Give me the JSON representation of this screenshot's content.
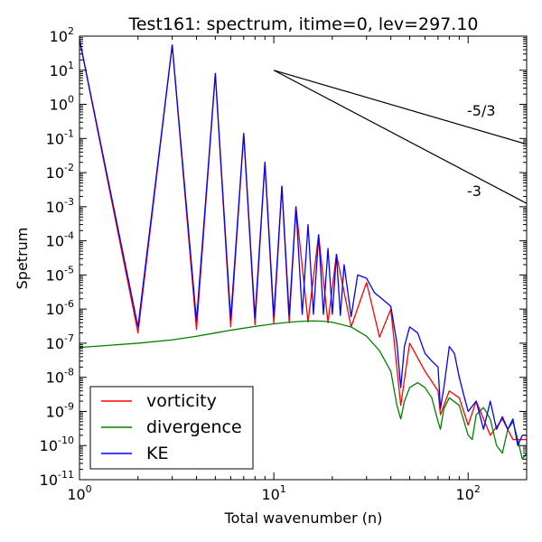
{
  "chart_data": {
    "type": "line",
    "title": "Test161: spectrum, itime=0, lev=297.10",
    "xlabel": "Total wavenumber (n)",
    "ylabel": "Spetrum",
    "xscale": "log",
    "yscale": "log",
    "xlim": [
      1,
      200
    ],
    "ylim": [
      1e-11,
      100
    ],
    "grid": false,
    "legend_position": "bottom-left",
    "x_ticks": [
      {
        "value": 1,
        "base": "10",
        "exp": "0"
      },
      {
        "value": 10,
        "base": "10",
        "exp": "1"
      },
      {
        "value": 100,
        "base": "10",
        "exp": "2"
      }
    ],
    "y_ticks": [
      {
        "value": 1e-11,
        "base": "10",
        "exp": "-11"
      },
      {
        "value": 1e-10,
        "base": "10",
        "exp": "-10"
      },
      {
        "value": 1e-09,
        "base": "10",
        "exp": "-9"
      },
      {
        "value": 1e-08,
        "base": "10",
        "exp": "-8"
      },
      {
        "value": 1e-07,
        "base": "10",
        "exp": "-7"
      },
      {
        "value": 1e-06,
        "base": "10",
        "exp": "-6"
      },
      {
        "value": 1e-05,
        "base": "10",
        "exp": "-5"
      },
      {
        "value": 0.0001,
        "base": "10",
        "exp": "-4"
      },
      {
        "value": 0.001,
        "base": "10",
        "exp": "-3"
      },
      {
        "value": 0.01,
        "base": "10",
        "exp": "-2"
      },
      {
        "value": 0.1,
        "base": "10",
        "exp": "-1"
      },
      {
        "value": 1,
        "base": "10",
        "exp": "0"
      },
      {
        "value": 10,
        "base": "10",
        "exp": "1"
      },
      {
        "value": 100,
        "base": "10",
        "exp": "2"
      }
    ],
    "series": [
      {
        "name": "vorticity",
        "color": "#ff0000",
        "x": [
          1,
          2,
          3,
          4,
          5,
          6,
          7,
          8,
          9,
          10,
          11,
          12,
          13,
          15,
          17,
          19,
          21,
          25,
          30,
          35,
          40,
          45,
          50,
          60,
          70,
          72,
          80,
          90,
          100,
          110,
          130,
          150,
          170,
          200
        ],
        "y": [
          80,
          2e-07,
          55,
          2.5e-07,
          8,
          3e-07,
          0.14,
          3.5e-07,
          0.02,
          3.8e-07,
          0.004,
          4e-07,
          0.001,
          4.2e-07,
          0.00015,
          4e-07,
          4e-05,
          3e-07,
          6e-06,
          1.5e-07,
          1e-06,
          1.5e-09,
          1e-07,
          1.5e-08,
          4e-09,
          8e-10,
          4e-09,
          2.5e-09,
          4e-10,
          2e-09,
          2e-10,
          6e-10,
          1.5e-10,
          1.5e-10
        ]
      },
      {
        "name": "divergence",
        "color": "#008000",
        "x": [
          1,
          2,
          3,
          4,
          5,
          6,
          8,
          10,
          12,
          14,
          16,
          18,
          20,
          25,
          30,
          35,
          40,
          43,
          45,
          47,
          50,
          55,
          60,
          65,
          70,
          72,
          75,
          80,
          90,
          100,
          105,
          110,
          120,
          130,
          140,
          150,
          160,
          170,
          180,
          190,
          200
        ],
        "y": [
          7.5e-08,
          1e-07,
          1.25e-07,
          1.6e-07,
          2e-07,
          2.4e-07,
          3.1e-07,
          3.7e-07,
          4.1e-07,
          4.4e-07,
          4.5e-07,
          4.4e-07,
          4.1e-07,
          3e-07,
          1.6e-07,
          6e-08,
          1.5e-08,
          1.5e-09,
          6e-10,
          2e-09,
          5e-09,
          7e-09,
          5e-09,
          2.5e-09,
          5e-10,
          3e-10,
          1.2e-09,
          2.5e-09,
          1.5e-09,
          2e-10,
          1.5e-10,
          8e-10,
          1.3e-09,
          6e-10,
          1e-10,
          6e-11,
          3e-10,
          5e-10,
          1.5e-10,
          4e-11,
          6e-11
        ]
      },
      {
        "name": "KE",
        "color": "#0000ff",
        "x": [
          1,
          2,
          3,
          4,
          5,
          6,
          7,
          8,
          9,
          10,
          11,
          12,
          13,
          14,
          15,
          16,
          17,
          18,
          19,
          20,
          21,
          22,
          23,
          25,
          27,
          30,
          33,
          36,
          40,
          43,
          45,
          47,
          50,
          55,
          60,
          65,
          70,
          72,
          75,
          80,
          85,
          90,
          95,
          100,
          110,
          120,
          130,
          140,
          150,
          160,
          170,
          180,
          190,
          200
        ],
        "y": [
          80,
          3e-07,
          55,
          4.5e-07,
          8,
          5e-07,
          0.14,
          5.5e-07,
          0.02,
          6e-07,
          0.004,
          6.5e-07,
          0.001,
          7e-07,
          0.0003,
          7e-07,
          0.00015,
          7e-07,
          6e-05,
          7e-07,
          4e-05,
          6.5e-07,
          2e-05,
          6e-07,
          1e-05,
          8e-06,
          3e-06,
          2e-06,
          1.2e-06,
          1e-07,
          5e-09,
          8e-08,
          3e-07,
          2e-07,
          5e-08,
          3e-08,
          2e-08,
          1.2e-09,
          5e-09,
          8e-08,
          5e-08,
          1e-08,
          3e-09,
          1e-09,
          2e-09,
          3e-10,
          2e-09,
          3e-10,
          7e-10,
          3e-10,
          6e-10,
          1e-10,
          2e-10,
          2e-10
        ]
      }
    ],
    "reference_lines": [
      {
        "label": "-5/3",
        "slope": -1.6667,
        "x_start": 10,
        "y_start": 10
      },
      {
        "label": "-3",
        "slope": -3,
        "x_start": 10,
        "y_start": 10
      }
    ]
  }
}
